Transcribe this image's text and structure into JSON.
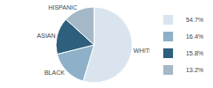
{
  "chart_data": {
    "type": "pie",
    "categories": [
      "WHITE",
      "BLACK",
      "ASIAN",
      "HISPANIC"
    ],
    "values": [
      54.7,
      16.4,
      15.8,
      13.2
    ],
    "value_labels": [
      "54.7%",
      "16.4%",
      "15.8%",
      "13.2%"
    ],
    "colors": [
      "#d9e4ef",
      "#8eb0c8",
      "#2e5f7c",
      "#a4b8c8"
    ],
    "legend": "right"
  }
}
